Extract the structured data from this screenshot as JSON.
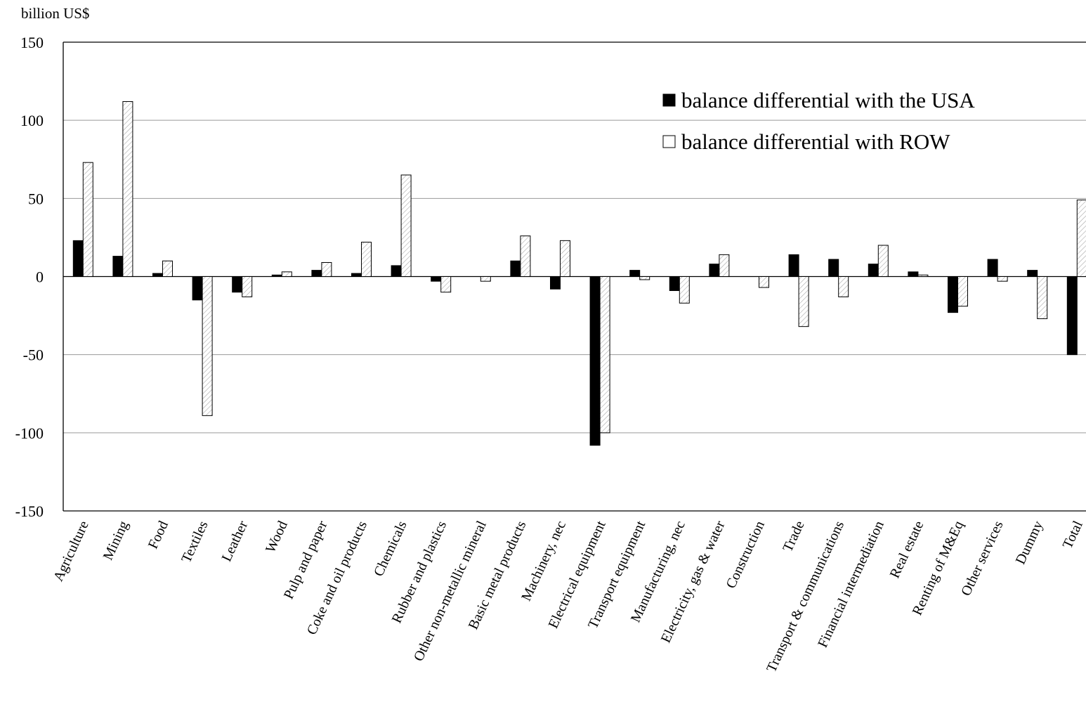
{
  "chart_data": {
    "type": "bar",
    "title": "",
    "ylabel": "billion US$",
    "xlabel": "",
    "ylim": [
      -150,
      150
    ],
    "yticks": [
      150,
      100,
      50,
      0,
      -50,
      -100,
      -150
    ],
    "grid": true,
    "legend_position": "top-right",
    "categories": [
      "Agriculture",
      "Mining",
      "Food",
      "Textiles",
      "Leather",
      "Wood",
      "Pulp and paper",
      "Coke and oil products",
      "Chemicals",
      "Rubber and plastics",
      "Other non-metallic mineral",
      "Basic metal products",
      "Machinery, nec",
      "Electrical equipment",
      "Transport equipment",
      "Manufacturing, nec",
      "Electricity, gas & water",
      "Construction",
      "Trade",
      "Transport & communications",
      "Financial intermediation",
      "Real estate",
      "Renting of M&Eq",
      "Other services",
      "Dummy",
      "Total"
    ],
    "series": [
      {
        "name": "balance differential with the USA",
        "color": "#000000",
        "values": [
          23,
          13,
          2,
          -15,
          -10,
          1,
          4,
          2,
          7,
          -3,
          0,
          10,
          -8,
          -108,
          4,
          -9,
          8,
          0,
          14,
          11,
          8,
          3,
          -23,
          11,
          4,
          -50
        ]
      },
      {
        "name": "balance differential with ROW",
        "color": "#ffffff",
        "pattern": "hatched",
        "values": [
          73,
          112,
          10,
          -89,
          -13,
          3,
          9,
          22,
          65,
          -10,
          -3,
          26,
          23,
          -100,
          -2,
          -17,
          14,
          -7,
          -32,
          -13,
          20,
          1,
          -19,
          -3,
          -27,
          49
        ]
      }
    ]
  }
}
